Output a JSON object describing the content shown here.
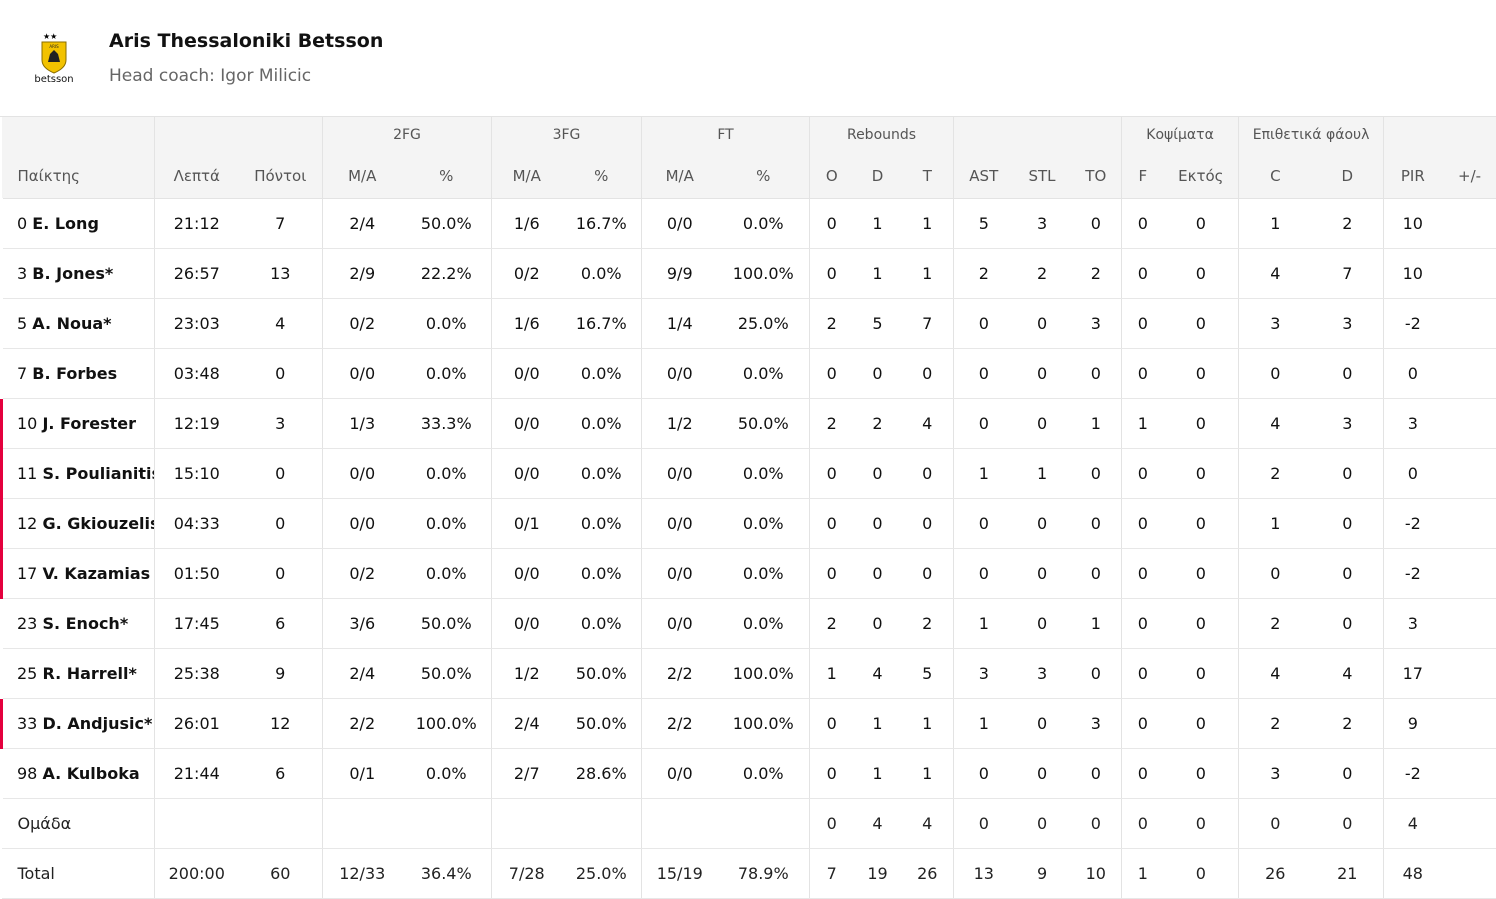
{
  "team": {
    "name": "Aris Thessaloniki Betsson",
    "coach": "Head coach: Igor Milicic",
    "logo_text": "betsson"
  },
  "headers": {
    "groups": {
      "fg2": "2FG",
      "fg3": "3FG",
      "ft": "FT",
      "rebounds": "Rebounds",
      "blocks": "Κοψίματα",
      "fouls": "Επιθετικά φάουλ"
    },
    "cols": {
      "player": "Παίκτης",
      "min": "Λεπτά",
      "pts": "Πόντοι",
      "fg2_ma": "M/A",
      "fg2_pct": "%",
      "fg3_ma": "M/A",
      "fg3_pct": "%",
      "ft_ma": "M/A",
      "ft_pct": "%",
      "reb_o": "O",
      "reb_d": "D",
      "reb_t": "T",
      "ast": "AST",
      "stl": "STL",
      "to": "TO",
      "blk_f": "F",
      "blk_a": "Εκτός",
      "foul_c": "C",
      "foul_d": "D",
      "pir": "PIR",
      "pm": "+/-"
    }
  },
  "players": [
    {
      "num": "0",
      "name": "E. Long",
      "bench": false,
      "min": "21:12",
      "pts": "7",
      "fg2_ma": "2/4",
      "fg2_pct": "50.0%",
      "fg3_ma": "1/6",
      "fg3_pct": "16.7%",
      "ft_ma": "0/0",
      "ft_pct": "0.0%",
      "reb_o": "0",
      "reb_d": "1",
      "reb_t": "1",
      "ast": "5",
      "stl": "3",
      "to": "0",
      "blk_f": "0",
      "blk_a": "0",
      "foul_c": "1",
      "foul_d": "2",
      "pir": "10",
      "pm": ""
    },
    {
      "num": "3",
      "name": "B. Jones*",
      "bench": false,
      "min": "26:57",
      "pts": "13",
      "fg2_ma": "2/9",
      "fg2_pct": "22.2%",
      "fg3_ma": "0/2",
      "fg3_pct": "0.0%",
      "ft_ma": "9/9",
      "ft_pct": "100.0%",
      "reb_o": "0",
      "reb_d": "1",
      "reb_t": "1",
      "ast": "2",
      "stl": "2",
      "to": "2",
      "blk_f": "0",
      "blk_a": "0",
      "foul_c": "4",
      "foul_d": "7",
      "pir": "10",
      "pm": ""
    },
    {
      "num": "5",
      "name": "A. Noua*",
      "bench": false,
      "min": "23:03",
      "pts": "4",
      "fg2_ma": "0/2",
      "fg2_pct": "0.0%",
      "fg3_ma": "1/6",
      "fg3_pct": "16.7%",
      "ft_ma": "1/4",
      "ft_pct": "25.0%",
      "reb_o": "2",
      "reb_d": "5",
      "reb_t": "7",
      "ast": "0",
      "stl": "0",
      "to": "3",
      "blk_f": "0",
      "blk_a": "0",
      "foul_c": "3",
      "foul_d": "3",
      "pir": "-2",
      "pm": ""
    },
    {
      "num": "7",
      "name": "B. Forbes",
      "bench": false,
      "min": "03:48",
      "pts": "0",
      "fg2_ma": "0/0",
      "fg2_pct": "0.0%",
      "fg3_ma": "0/0",
      "fg3_pct": "0.0%",
      "ft_ma": "0/0",
      "ft_pct": "0.0%",
      "reb_o": "0",
      "reb_d": "0",
      "reb_t": "0",
      "ast": "0",
      "stl": "0",
      "to": "0",
      "blk_f": "0",
      "blk_a": "0",
      "foul_c": "0",
      "foul_d": "0",
      "pir": "0",
      "pm": ""
    },
    {
      "num": "10",
      "name": "J. Forester",
      "bench": true,
      "min": "12:19",
      "pts": "3",
      "fg2_ma": "1/3",
      "fg2_pct": "33.3%",
      "fg3_ma": "0/0",
      "fg3_pct": "0.0%",
      "ft_ma": "1/2",
      "ft_pct": "50.0%",
      "reb_o": "2",
      "reb_d": "2",
      "reb_t": "4",
      "ast": "0",
      "stl": "0",
      "to": "1",
      "blk_f": "1",
      "blk_a": "0",
      "foul_c": "4",
      "foul_d": "3",
      "pir": "3",
      "pm": ""
    },
    {
      "num": "11",
      "name": "S. Poulianitis",
      "bench": true,
      "min": "15:10",
      "pts": "0",
      "fg2_ma": "0/0",
      "fg2_pct": "0.0%",
      "fg3_ma": "0/0",
      "fg3_pct": "0.0%",
      "ft_ma": "0/0",
      "ft_pct": "0.0%",
      "reb_o": "0",
      "reb_d": "0",
      "reb_t": "0",
      "ast": "1",
      "stl": "1",
      "to": "0",
      "blk_f": "0",
      "blk_a": "0",
      "foul_c": "2",
      "foul_d": "0",
      "pir": "0",
      "pm": ""
    },
    {
      "num": "12",
      "name": "G. Gkiouzelis",
      "bench": true,
      "min": "04:33",
      "pts": "0",
      "fg2_ma": "0/0",
      "fg2_pct": "0.0%",
      "fg3_ma": "0/1",
      "fg3_pct": "0.0%",
      "ft_ma": "0/0",
      "ft_pct": "0.0%",
      "reb_o": "0",
      "reb_d": "0",
      "reb_t": "0",
      "ast": "0",
      "stl": "0",
      "to": "0",
      "blk_f": "0",
      "blk_a": "0",
      "foul_c": "1",
      "foul_d": "0",
      "pir": "-2",
      "pm": ""
    },
    {
      "num": "17",
      "name": "V. Kazamias",
      "bench": true,
      "min": "01:50",
      "pts": "0",
      "fg2_ma": "0/2",
      "fg2_pct": "0.0%",
      "fg3_ma": "0/0",
      "fg3_pct": "0.0%",
      "ft_ma": "0/0",
      "ft_pct": "0.0%",
      "reb_o": "0",
      "reb_d": "0",
      "reb_t": "0",
      "ast": "0",
      "stl": "0",
      "to": "0",
      "blk_f": "0",
      "blk_a": "0",
      "foul_c": "0",
      "foul_d": "0",
      "pir": "-2",
      "pm": ""
    },
    {
      "num": "23",
      "name": "S. Enoch*",
      "bench": false,
      "min": "17:45",
      "pts": "6",
      "fg2_ma": "3/6",
      "fg2_pct": "50.0%",
      "fg3_ma": "0/0",
      "fg3_pct": "0.0%",
      "ft_ma": "0/0",
      "ft_pct": "0.0%",
      "reb_o": "2",
      "reb_d": "0",
      "reb_t": "2",
      "ast": "1",
      "stl": "0",
      "to": "1",
      "blk_f": "0",
      "blk_a": "0",
      "foul_c": "2",
      "foul_d": "0",
      "pir": "3",
      "pm": ""
    },
    {
      "num": "25",
      "name": "R. Harrell*",
      "bench": false,
      "min": "25:38",
      "pts": "9",
      "fg2_ma": "2/4",
      "fg2_pct": "50.0%",
      "fg3_ma": "1/2",
      "fg3_pct": "50.0%",
      "ft_ma": "2/2",
      "ft_pct": "100.0%",
      "reb_o": "1",
      "reb_d": "4",
      "reb_t": "5",
      "ast": "3",
      "stl": "3",
      "to": "0",
      "blk_f": "0",
      "blk_a": "0",
      "foul_c": "4",
      "foul_d": "4",
      "pir": "17",
      "pm": ""
    },
    {
      "num": "33",
      "name": "D. Andjusic*",
      "bench": true,
      "min": "26:01",
      "pts": "12",
      "fg2_ma": "2/2",
      "fg2_pct": "100.0%",
      "fg3_ma": "2/4",
      "fg3_pct": "50.0%",
      "ft_ma": "2/2",
      "ft_pct": "100.0%",
      "reb_o": "0",
      "reb_d": "1",
      "reb_t": "1",
      "ast": "1",
      "stl": "0",
      "to": "3",
      "blk_f": "0",
      "blk_a": "0",
      "foul_c": "2",
      "foul_d": "2",
      "pir": "9",
      "pm": ""
    },
    {
      "num": "98",
      "name": "A. Kulboka",
      "bench": false,
      "min": "21:44",
      "pts": "6",
      "fg2_ma": "0/1",
      "fg2_pct": "0.0%",
      "fg3_ma": "2/7",
      "fg3_pct": "28.6%",
      "ft_ma": "0/0",
      "ft_pct": "0.0%",
      "reb_o": "0",
      "reb_d": "1",
      "reb_t": "1",
      "ast": "0",
      "stl": "0",
      "to": "0",
      "blk_f": "0",
      "blk_a": "0",
      "foul_c": "3",
      "foul_d": "0",
      "pir": "-2",
      "pm": ""
    }
  ],
  "team_row": {
    "label": "Ομάδα",
    "min": "",
    "pts": "",
    "fg2_ma": "",
    "fg2_pct": "",
    "fg3_ma": "",
    "fg3_pct": "",
    "ft_ma": "",
    "ft_pct": "",
    "reb_o": "0",
    "reb_d": "4",
    "reb_t": "4",
    "ast": "0",
    "stl": "0",
    "to": "0",
    "blk_f": "0",
    "blk_a": "0",
    "foul_c": "0",
    "foul_d": "0",
    "pir": "4",
    "pm": ""
  },
  "total_row": {
    "label": "Total",
    "min": "200:00",
    "pts": "60",
    "fg2_ma": "12/33",
    "fg2_pct": "36.4%",
    "fg3_ma": "7/28",
    "fg3_pct": "25.0%",
    "ft_ma": "15/19",
    "ft_pct": "78.9%",
    "reb_o": "7",
    "reb_d": "19",
    "reb_t": "26",
    "ast": "13",
    "stl": "9",
    "to": "10",
    "blk_f": "1",
    "blk_a": "0",
    "foul_c": "26",
    "foul_d": "21",
    "pir": "48",
    "pm": ""
  },
  "colors": {
    "bench_marker": "#e4003d",
    "header_bg": "#f4f4f4",
    "logo_yellow": "#f2c200"
  }
}
